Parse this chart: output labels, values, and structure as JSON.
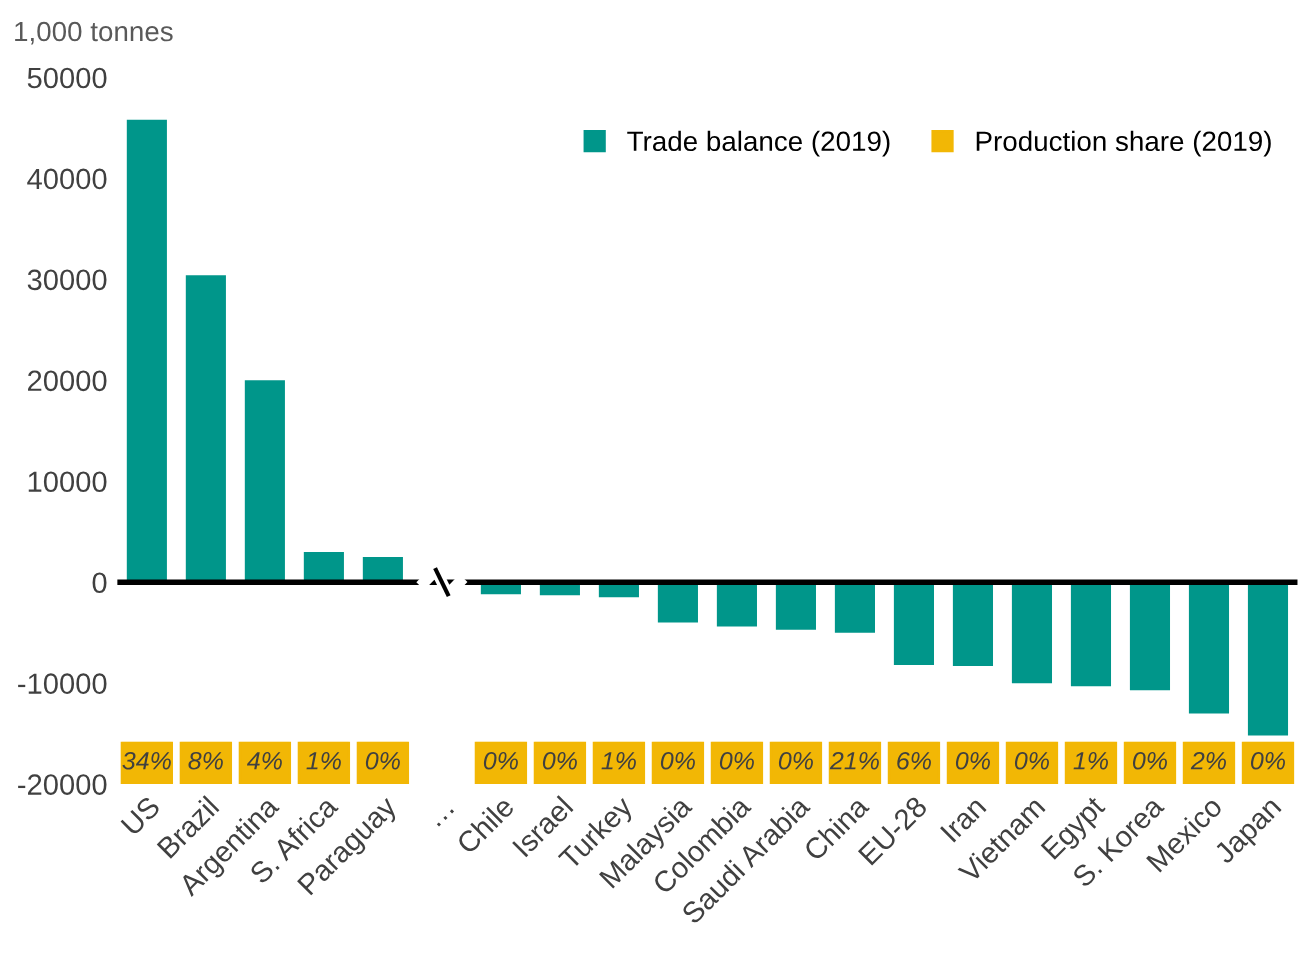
{
  "chart_data": [
    {
      "type": "bar",
      "ylabel": "1,000 tonnes",
      "categories": [
        "US",
        "Brazil",
        "Argentina",
        "S. Africa",
        "Paraguay",
        "…",
        "Chile",
        "Israel",
        "Turkey",
        "Malaysia",
        "Colombia",
        "Saudi Arabia",
        "China",
        "EU-28",
        "Iran",
        "Vietnam",
        "Egypt",
        "S. Korea",
        "Mexico",
        "Japan"
      ],
      "series": [
        {
          "name": "Trade balance (2019)",
          "color": "#00968a",
          "values": [
            45800,
            30400,
            20000,
            3000,
            2500,
            null,
            -1200,
            -1300,
            -1500,
            -4000,
            -4400,
            -4700,
            -5000,
            -8200,
            -8300,
            -10000,
            -10300,
            -10700,
            -13000,
            -15200
          ]
        }
      ],
      "ylim": [
        -20000,
        50000
      ],
      "yticks": [
        -20000,
        -10000,
        0,
        10000,
        20000,
        30000,
        40000,
        50000
      ],
      "ref_lines": [
        {
          "axis": "y",
          "value": 0,
          "color": "#000000"
        }
      ],
      "grid": false,
      "legend": "top right"
    },
    {
      "type": "other",
      "series": [
        {
          "name": "Production share (2019)",
          "color": "#f2b705",
          "values": [
            34,
            8,
            4,
            1,
            0,
            null,
            0,
            0,
            1,
            0,
            0,
            0,
            21,
            6,
            0,
            0,
            1,
            0,
            2,
            0
          ],
          "value_labels": [
            "34%",
            "8%",
            "4%",
            "1%",
            "0%",
            null,
            "0%",
            "0%",
            "1%",
            "0%",
            "0%",
            "0%",
            "21%",
            "6%",
            "0%",
            "0%",
            "1%",
            "0%",
            "2%",
            "0%"
          ]
        }
      ]
    }
  ]
}
